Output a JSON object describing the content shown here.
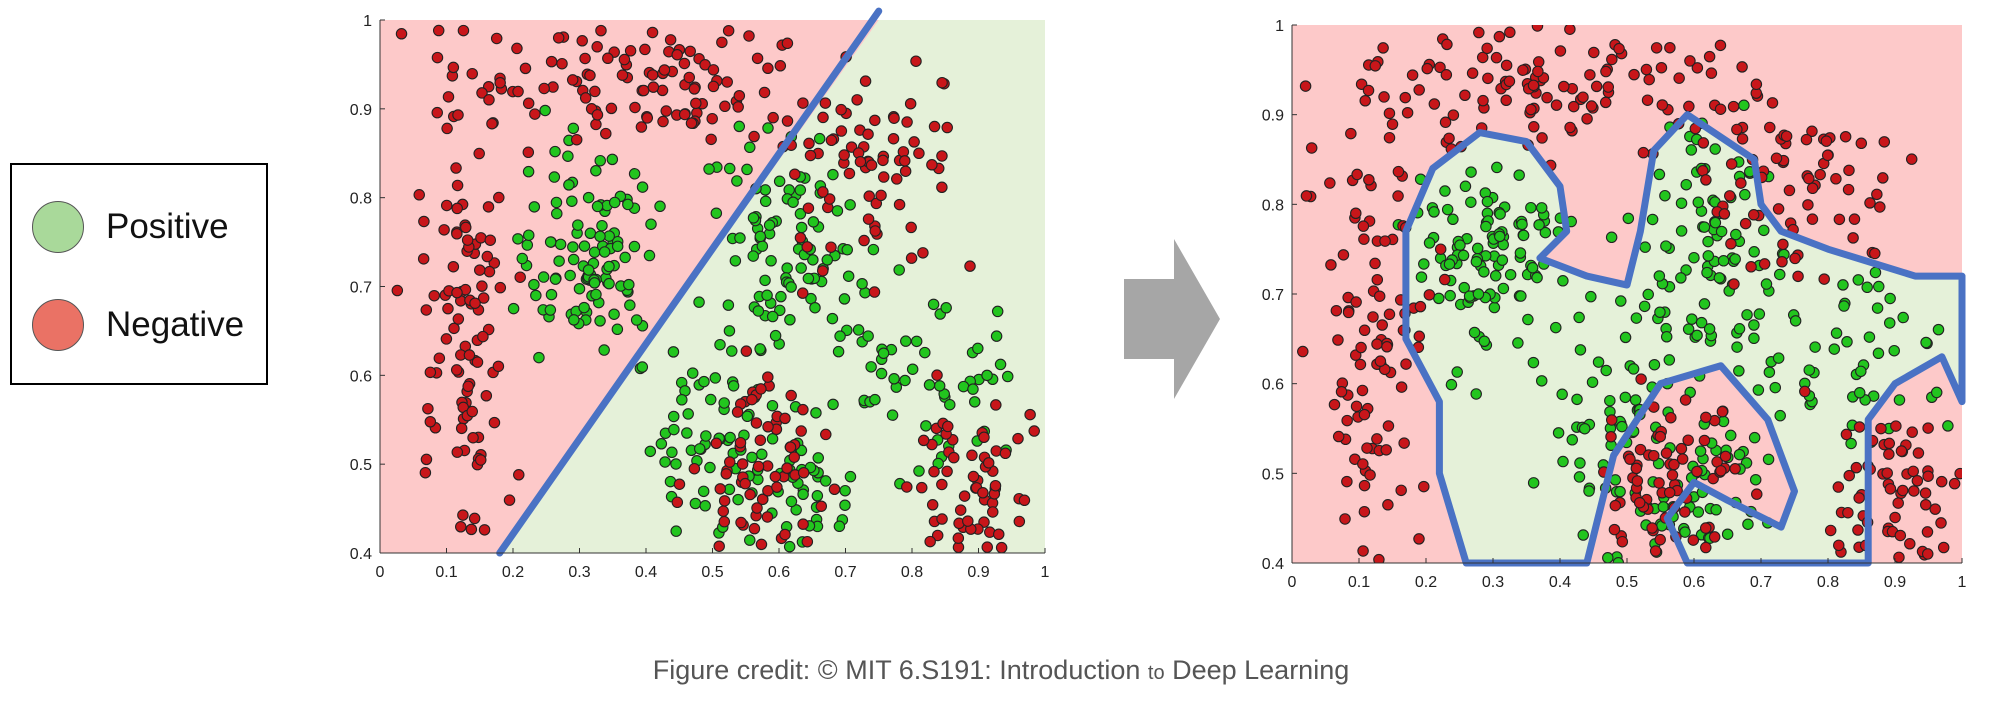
{
  "legend": {
    "items": [
      {
        "label": "Positive",
        "color": "#a9d99a"
      },
      {
        "label": "Negative",
        "color": "#ea7265"
      }
    ]
  },
  "colors": {
    "negative_region": "#fdc9c9",
    "positive_region": "#e5f1d9",
    "negative_point": "#c8161a",
    "positive_point": "#22c51e",
    "boundary": "#4a72c4",
    "arrow": "#a6a6a6"
  },
  "arrow_icon": "right-arrow-icon",
  "credit": {
    "prefix": "Figure credit: © MIT 6.S191: Introduction",
    "small": "to",
    "suffix": "Deep Learning"
  },
  "chart_data": [
    {
      "type": "scatter",
      "title": "",
      "xlabel": "",
      "ylabel": "",
      "xlim": [
        0,
        1
      ],
      "ylim": [
        0.4,
        1
      ],
      "grid": false,
      "xticks": [
        "0",
        "0.1",
        "0.2",
        "0.3",
        "0.4",
        "0.5",
        "0.6",
        "0.7",
        "0.8",
        "0.9",
        "1"
      ],
      "yticks": [
        "0.4",
        "0.5",
        "0.6",
        "0.7",
        "0.8",
        "0.9",
        "1"
      ],
      "boundary": "linear",
      "boundary_line": [
        [
          0.18,
          0.4
        ],
        [
          0.75,
          1.01
        ]
      ],
      "series": [
        {
          "name": "Positive",
          "clusters": [
            {
              "cx": 0.3,
              "cy": 0.74,
              "rx": 0.1,
              "ry": 0.1,
              "n": 110
            },
            {
              "cx": 0.62,
              "cy": 0.75,
              "rx": 0.1,
              "ry": 0.12,
              "n": 90
            },
            {
              "cx": 0.5,
              "cy": 0.54,
              "rx": 0.1,
              "ry": 0.12,
              "n": 70
            },
            {
              "cx": 0.62,
              "cy": 0.47,
              "rx": 0.08,
              "ry": 0.06,
              "n": 40
            },
            {
              "cx": 0.8,
              "cy": 0.62,
              "rx": 0.15,
              "ry": 0.1,
              "n": 60
            }
          ]
        },
        {
          "name": "Negative",
          "clusters": [
            {
              "cx": 0.4,
              "cy": 0.93,
              "rx": 0.28,
              "ry": 0.06,
              "n": 120
            },
            {
              "cx": 0.13,
              "cy": 0.65,
              "rx": 0.07,
              "ry": 0.23,
              "n": 110
            },
            {
              "cx": 0.75,
              "cy": 0.82,
              "rx": 0.12,
              "ry": 0.1,
              "n": 70
            },
            {
              "cx": 0.57,
              "cy": 0.5,
              "rx": 0.08,
              "ry": 0.1,
              "n": 70
            },
            {
              "cx": 0.9,
              "cy": 0.47,
              "rx": 0.09,
              "ry": 0.08,
              "n": 70
            }
          ]
        }
      ]
    },
    {
      "type": "scatter",
      "title": "",
      "xlabel": "",
      "ylabel": "",
      "xlim": [
        0,
        1
      ],
      "ylim": [
        0.4,
        1
      ],
      "grid": false,
      "xticks": [
        "0",
        "0.1",
        "0.2",
        "0.3",
        "0.4",
        "0.5",
        "0.6",
        "0.7",
        "0.8",
        "0.9",
        "1"
      ],
      "yticks": [
        "0.4",
        "0.5",
        "0.6",
        "0.7",
        "0.8",
        "0.9",
        "1"
      ],
      "boundary": "nonlinear",
      "boundary_polygon": [
        [
          0.26,
          0.4
        ],
        [
          0.22,
          0.5
        ],
        [
          0.22,
          0.58
        ],
        [
          0.17,
          0.65
        ],
        [
          0.17,
          0.77
        ],
        [
          0.21,
          0.84
        ],
        [
          0.28,
          0.88
        ],
        [
          0.35,
          0.87
        ],
        [
          0.4,
          0.82
        ],
        [
          0.41,
          0.77
        ],
        [
          0.37,
          0.74
        ],
        [
          0.44,
          0.72
        ],
        [
          0.5,
          0.71
        ],
        [
          0.52,
          0.77
        ],
        [
          0.54,
          0.86
        ],
        [
          0.59,
          0.9
        ],
        [
          0.65,
          0.87
        ],
        [
          0.69,
          0.85
        ],
        [
          0.7,
          0.8
        ],
        [
          0.73,
          0.77
        ],
        [
          0.8,
          0.75
        ],
        [
          0.93,
          0.72
        ],
        [
          1.0,
          0.72
        ],
        [
          1.0,
          0.58
        ],
        [
          0.97,
          0.63
        ],
        [
          0.9,
          0.6
        ],
        [
          0.86,
          0.56
        ],
        [
          0.86,
          0.4
        ],
        [
          0.72,
          0.4
        ],
        [
          0.59,
          0.4
        ],
        [
          0.56,
          0.45
        ],
        [
          0.6,
          0.49
        ],
        [
          0.65,
          0.47
        ],
        [
          0.73,
          0.44
        ],
        [
          0.75,
          0.48
        ],
        [
          0.71,
          0.56
        ],
        [
          0.64,
          0.62
        ],
        [
          0.55,
          0.6
        ],
        [
          0.48,
          0.52
        ],
        [
          0.44,
          0.4
        ]
      ],
      "series": [
        {
          "name": "Positive",
          "clusters": [
            {
              "cx": 0.3,
              "cy": 0.74,
              "rx": 0.1,
              "ry": 0.1,
              "n": 110
            },
            {
              "cx": 0.62,
              "cy": 0.75,
              "rx": 0.1,
              "ry": 0.12,
              "n": 90
            },
            {
              "cx": 0.5,
              "cy": 0.54,
              "rx": 0.1,
              "ry": 0.12,
              "n": 70
            },
            {
              "cx": 0.62,
              "cy": 0.47,
              "rx": 0.08,
              "ry": 0.06,
              "n": 40
            },
            {
              "cx": 0.8,
              "cy": 0.62,
              "rx": 0.15,
              "ry": 0.1,
              "n": 60
            }
          ]
        },
        {
          "name": "Negative",
          "clusters": [
            {
              "cx": 0.4,
              "cy": 0.93,
              "rx": 0.28,
              "ry": 0.06,
              "n": 120
            },
            {
              "cx": 0.13,
              "cy": 0.65,
              "rx": 0.07,
              "ry": 0.23,
              "n": 110
            },
            {
              "cx": 0.75,
              "cy": 0.82,
              "rx": 0.12,
              "ry": 0.1,
              "n": 70
            },
            {
              "cx": 0.57,
              "cy": 0.5,
              "rx": 0.08,
              "ry": 0.1,
              "n": 70
            },
            {
              "cx": 0.9,
              "cy": 0.47,
              "rx": 0.09,
              "ry": 0.08,
              "n": 70
            }
          ]
        }
      ]
    }
  ]
}
